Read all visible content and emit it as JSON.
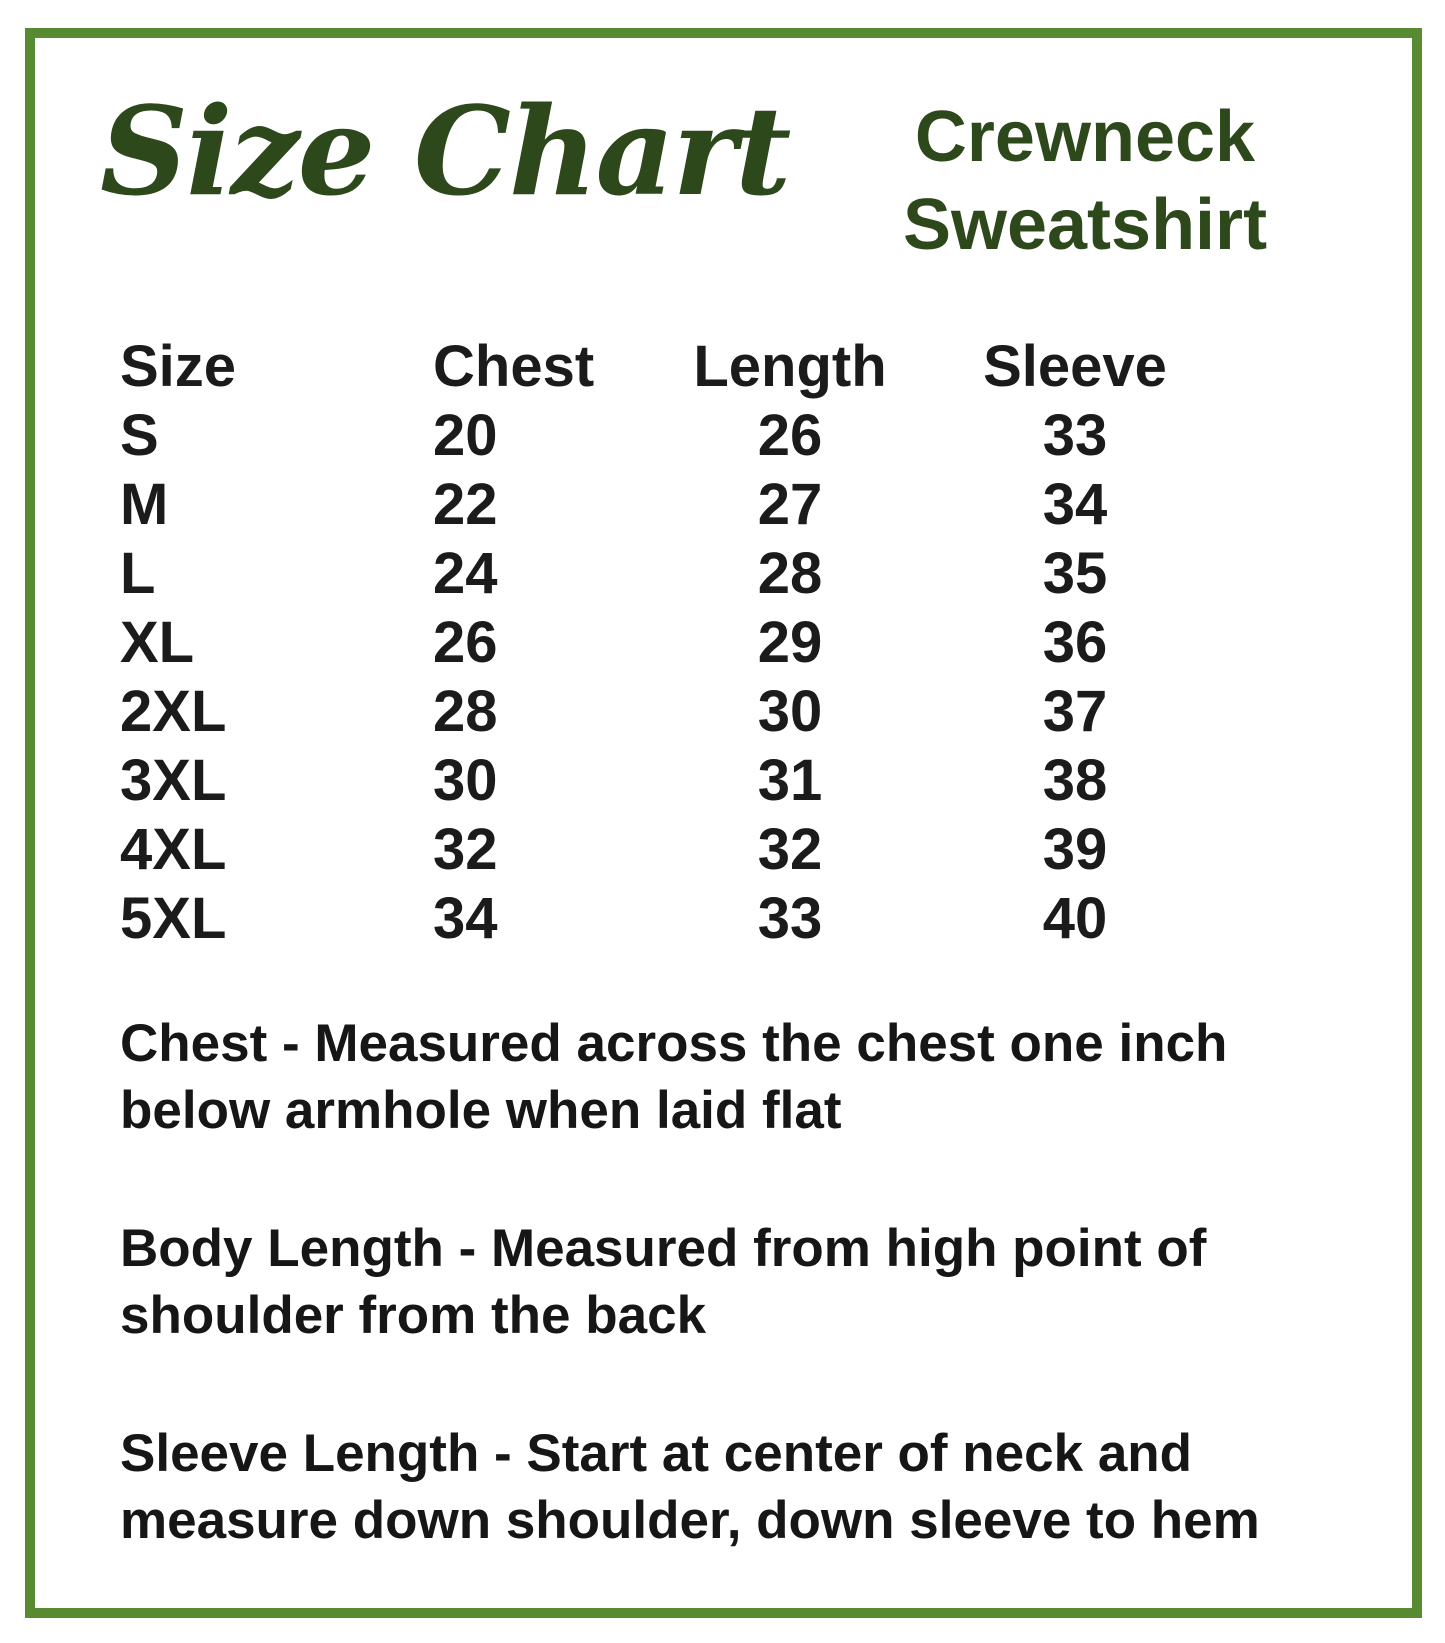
{
  "title": "Size Chart",
  "product": {
    "line1": "Crewneck",
    "line2": "Sweatshirt"
  },
  "table": {
    "headers": [
      "Size",
      "Chest",
      "Length",
      "Sleeve"
    ],
    "rows": [
      [
        "S",
        "20",
        "26",
        "33"
      ],
      [
        "M",
        "22",
        "27",
        "34"
      ],
      [
        "L",
        "24",
        "28",
        "35"
      ],
      [
        "XL",
        "26",
        "29",
        "36"
      ],
      [
        "2XL",
        "28",
        "30",
        "37"
      ],
      [
        "3XL",
        "30",
        "31",
        "38"
      ],
      [
        "4XL",
        "32",
        "32",
        "39"
      ],
      [
        "5XL",
        "34",
        "33",
        "40"
      ]
    ]
  },
  "notes": [
    {
      "line1": "Chest - Measured across the chest one inch",
      "line2": "below armhole when laid flat"
    },
    {
      "line1": "Body Length - Measured from high point of",
      "line2": "shoulder from the back"
    },
    {
      "line1": "Sleeve Length - Start at center of neck and",
      "line2": "measure down shoulder, down sleeve to hem"
    }
  ],
  "colors": {
    "frame_green": "#578a31",
    "heading_green": "#2d481b",
    "text_black": "#1b1b1b"
  }
}
